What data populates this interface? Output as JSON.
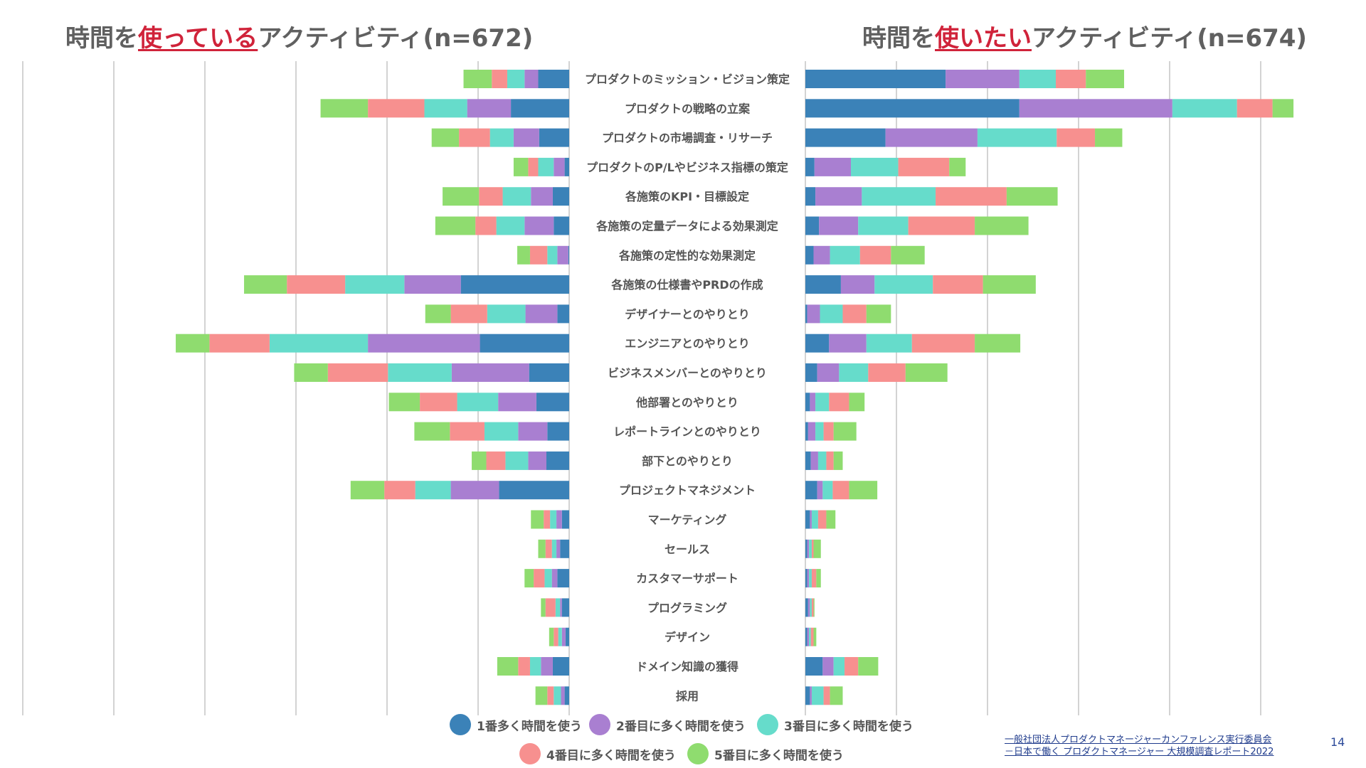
{
  "header": {
    "left_prefix": "時間を",
    "left_highlight": "使っている",
    "left_suffix": "アクティビティ(n=672)",
    "right_prefix": "時間を",
    "right_highlight": "使いたい",
    "right_suffix": "アクティビティ(n=674)"
  },
  "colors": {
    "rank1": "#3b82b8",
    "rank2": "#a97fd1",
    "rank3": "#66dccb",
    "rank4": "#f7908f",
    "rank5": "#8fdc6f",
    "grid": "#d3d3d3",
    "highlight": "#d0233a"
  },
  "legend": [
    {
      "label": "1番多く時間を使う",
      "color": "#3b82b8"
    },
    {
      "label": "2番目に多く時間を使う",
      "color": "#a97fd1"
    },
    {
      "label": "3番目に多く時間を使う",
      "color": "#66dccb"
    },
    {
      "label": "4番目に多く時間を使う",
      "color": "#f7908f"
    },
    {
      "label": "5番目に多く時間を使う",
      "color": "#8fdc6f"
    }
  ],
  "chart_data": [
    {
      "type": "bar",
      "orientation": "horizontal",
      "stacked": true,
      "direction": "leftward",
      "title": "時間を使っているアクティビティ(n=672)",
      "categories": [
        "プロダクトのミッション・ビジョン策定",
        "プロダクトの戦略の立案",
        "プロダクトの市場調査・リサーチ",
        "プロダクトのP/Lやビジネス指標の策定",
        "各施策のKPI・目標設定",
        "各施策の定量データによる効果測定",
        "各施策の定性的な効果測定",
        "各施策の仕様書やPRDの作成",
        "デザイナーとのやりとり",
        "エンジニアとのやりとり",
        "ビジネスメンバーとのやりとり",
        "他部署とのやりとり",
        "レポートラインとのやりとり",
        "部下とのやりとり",
        "プロジェクトマネジメント",
        "マーケティング",
        "セールス",
        "カスタマーサポート",
        "プログラミング",
        "デザイン",
        "ドメイン知識の獲得",
        "採用"
      ],
      "series": [
        {
          "name": "1番多く時間を使う",
          "values": [
            34,
            64,
            33,
            5,
            18,
            17,
            1,
            119,
            13,
            98,
            44,
            36,
            24,
            25,
            77,
            8,
            10,
            13,
            8,
            4,
            18,
            5
          ]
        },
        {
          "name": "2番目に多く時間を使う",
          "values": [
            15,
            48,
            28,
            12,
            24,
            32,
            12,
            62,
            35,
            123,
            85,
            42,
            32,
            20,
            53,
            6,
            4,
            6,
            2,
            4,
            13,
            4
          ]
        },
        {
          "name": "3番目に多く時間を使う",
          "values": [
            19,
            47,
            26,
            17,
            31,
            31,
            11,
            65,
            42,
            108,
            70,
            45,
            37,
            25,
            39,
            7,
            5,
            8,
            5,
            4,
            12,
            8
          ]
        },
        {
          "name": "4番目に多く時間を使う",
          "values": [
            17,
            62,
            34,
            11,
            26,
            23,
            19,
            64,
            40,
            66,
            66,
            41,
            38,
            21,
            34,
            7,
            7,
            12,
            11,
            5,
            13,
            7
          ]
        },
        {
          "name": "5番目に多く時間を使う",
          "values": [
            31,
            52,
            30,
            16,
            40,
            44,
            14,
            47,
            28,
            37,
            37,
            34,
            39,
            16,
            37,
            14,
            8,
            10,
            5,
            5,
            23,
            13
          ]
        }
      ]
    },
    {
      "type": "bar",
      "orientation": "horizontal",
      "stacked": true,
      "direction": "rightward",
      "title": "時間を使いたいアクティビティ(n=674)",
      "categories": [
        "プロダクトのミッション・ビジョン策定",
        "プロダクトの戦略の立案",
        "プロダクトの市場調査・リサーチ",
        "プロダクトのP/Lやビジネス指標の策定",
        "各施策のKPI・目標設定",
        "各施策の定量データによる効果測定",
        "各施策の定性的な効果測定",
        "各施策の仕様書やPRDの作成",
        "デザイナーとのやりとり",
        "エンジニアとのやりとり",
        "ビジネスメンバーとのやりとり",
        "他部署とのやりとり",
        "レポートラインとのやりとり",
        "部下とのやりとり",
        "プロジェクトマネジメント",
        "マーケティング",
        "セールス",
        "カスタマーサポート",
        "プログラミング",
        "デザイン",
        "ドメイン知識の獲得",
        "採用"
      ],
      "series": [
        {
          "name": "1番多く時間を使う",
          "values": [
            154,
            235,
            88,
            10,
            11,
            15,
            9,
            39,
            2,
            26,
            13,
            5,
            3,
            6,
            13,
            5,
            2,
            2,
            3,
            2,
            19,
            5
          ]
        },
        {
          "name": "2番目に多く時間を使う",
          "values": [
            81,
            168,
            101,
            40,
            51,
            43,
            18,
            37,
            14,
            41,
            24,
            6,
            8,
            8,
            6,
            2,
            2,
            2,
            2,
            2,
            12,
            2
          ]
        },
        {
          "name": "3番目に多く時間を使う",
          "values": [
            40,
            71,
            87,
            52,
            81,
            55,
            33,
            64,
            25,
            50,
            32,
            15,
            9,
            9,
            11,
            7,
            3,
            3,
            2,
            2,
            12,
            13
          ]
        },
        {
          "name": "4番目に多く時間を使う",
          "values": [
            33,
            39,
            42,
            56,
            78,
            73,
            34,
            55,
            26,
            69,
            41,
            22,
            11,
            8,
            18,
            9,
            2,
            5,
            2,
            3,
            15,
            7
          ]
        },
        {
          "name": "5番目に多く時間を使う",
          "values": [
            42,
            23,
            30,
            18,
            56,
            59,
            37,
            58,
            27,
            50,
            46,
            17,
            25,
            10,
            31,
            10,
            8,
            5,
            1,
            3,
            22,
            14
          ]
        }
      ]
    }
  ],
  "footer": {
    "source_line1": "一般社団法人プロダクトマネージャーカンファレンス実行委員会",
    "source_line2": "－日本で働く プロダクトマネージャー 大規模調査レポート2022",
    "page_number": "14"
  }
}
